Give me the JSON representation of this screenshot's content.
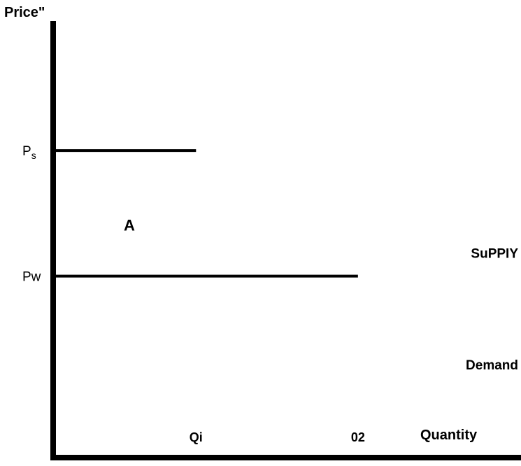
{
  "chart_data": {
    "type": "line",
    "ylabel": "Price\"",
    "xlabel": "Quantity",
    "price_levels": [
      {
        "label": "Ps",
        "main": "P",
        "sub": "s",
        "value": 0.66,
        "extends_to_quantity": 0.3
      },
      {
        "label": "Pw",
        "main": "Pw",
        "sub": "",
        "value": 0.39,
        "extends_to_quantity": 0.64
      }
    ],
    "quantity_labels": [
      {
        "label": "Qi",
        "value": 0.3
      },
      {
        "label": "02",
        "value": 0.64
      }
    ],
    "region_labels": [
      {
        "label": "A",
        "quantity": 0.16,
        "price": 0.5
      }
    ],
    "curve_labels": [
      {
        "label": "SuPPIY",
        "price": 0.44
      },
      {
        "label": "Demand",
        "price": 0.2
      }
    ],
    "xlim": [
      0,
      1
    ],
    "ylim": [
      0,
      1
    ],
    "grid": false
  },
  "colors": {
    "ink": "#000000",
    "background": "#ffffff"
  }
}
